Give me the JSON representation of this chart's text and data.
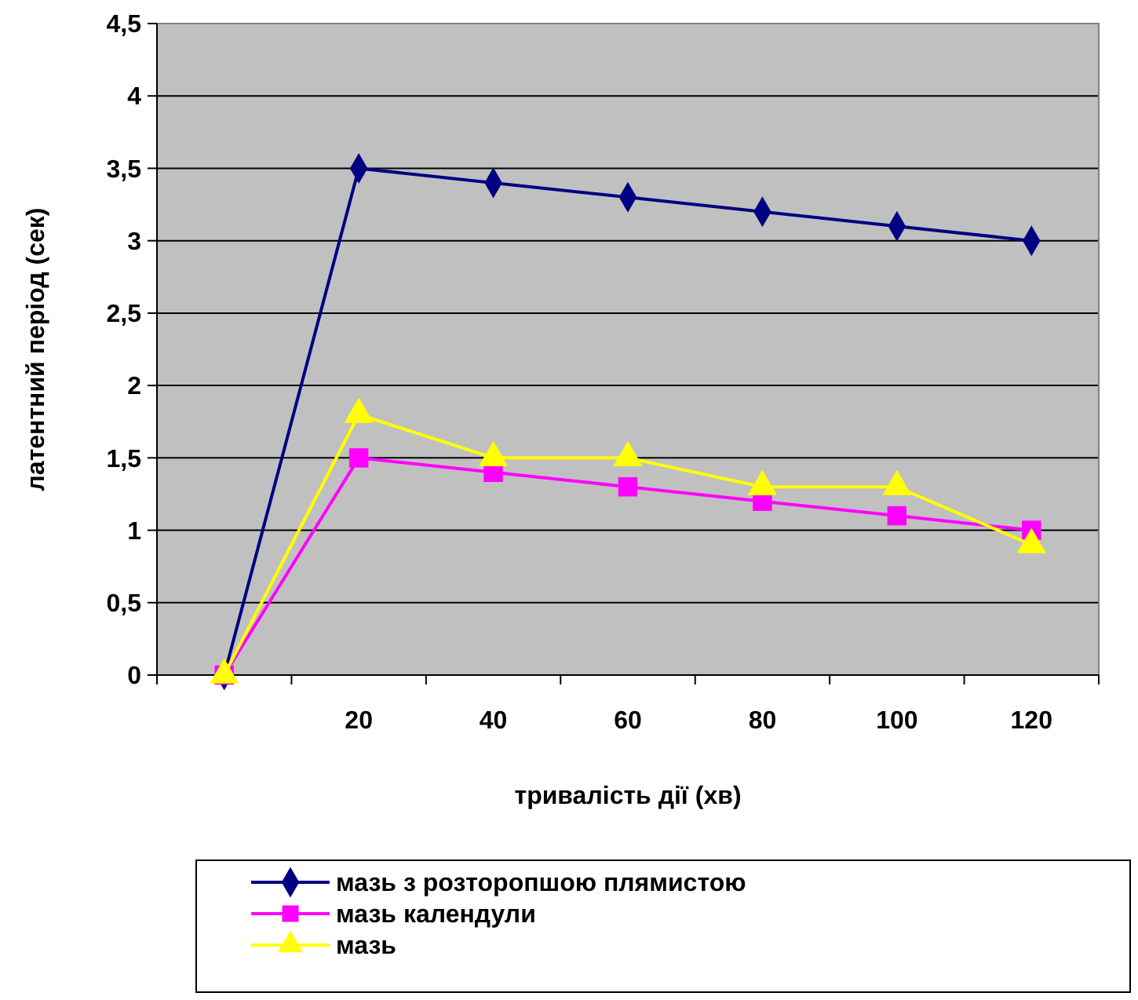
{
  "chart_data": {
    "type": "line",
    "xlabel": "тривалість дії (хв)",
    "ylabel": "латентний період (сек)",
    "categories": [
      null,
      "20",
      "40",
      "60",
      "80",
      "100",
      "120"
    ],
    "ylim": [
      0,
      4.5
    ],
    "yticks": [
      0,
      {
        "value": 0.5,
        "label": "0,5"
      },
      1,
      {
        "value": 1.5,
        "label": "1,5"
      },
      2,
      {
        "value": 2.5,
        "label": "2,5"
      },
      3,
      {
        "value": 3.5,
        "label": "3,5"
      },
      4,
      {
        "value": 4.5,
        "label": "4,5"
      }
    ],
    "grid": "y",
    "legend": "bottom",
    "series": [
      {
        "name": "мазь з розторопшою плямистою",
        "color": "#000080",
        "marker": "diamond",
        "values": [
          0,
          3.5,
          3.4,
          3.3,
          3.2,
          3.1,
          3.0
        ]
      },
      {
        "name": "мазь календули",
        "color": "#ff00ff",
        "marker": "square",
        "values": [
          0,
          1.5,
          1.4,
          1.3,
          1.2,
          1.1,
          1.0
        ]
      },
      {
        "name": "мазь",
        "color": "#ffff00",
        "marker": "triangle",
        "values": [
          0,
          1.8,
          1.5,
          1.5,
          1.3,
          1.3,
          0.9
        ]
      }
    ]
  }
}
